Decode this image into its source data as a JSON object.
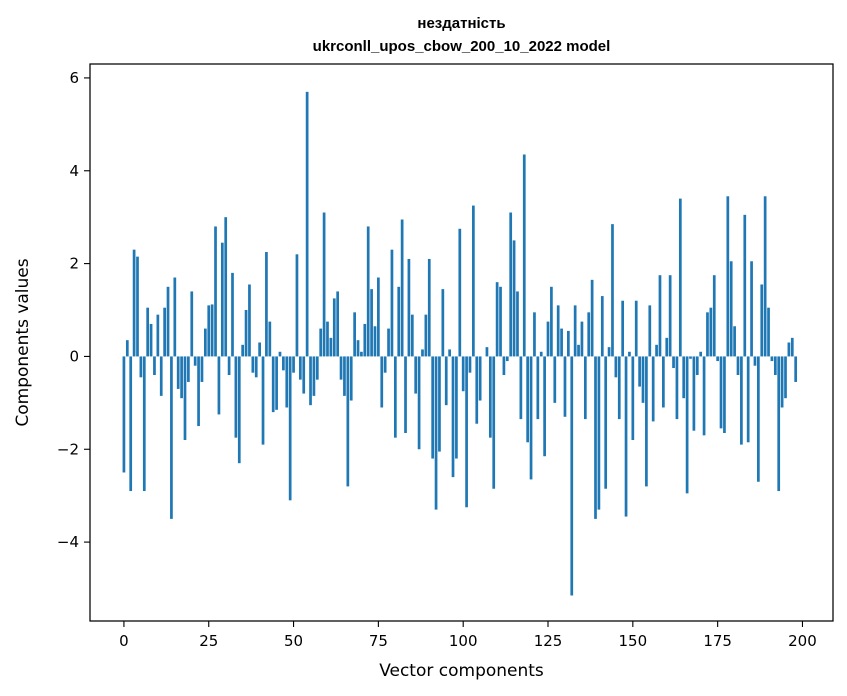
{
  "chart_data": {
    "type": "bar",
    "title_line1": "нездатність",
    "title_line2": "ukrconll_upos_cbow_200_10_2022 model",
    "xlabel": "Vector components",
    "ylabel": "Components values",
    "xlim": [
      -10,
      209
    ],
    "ylim": [
      -5.7,
      6.3
    ],
    "x_ticks": [
      0,
      25,
      50,
      75,
      100,
      125,
      150,
      175,
      200
    ],
    "y_ticks": [
      -4,
      -2,
      0,
      2,
      4,
      6
    ],
    "x_tick_labels": [
      "0",
      "25",
      "50",
      "75",
      "100",
      "125",
      "150",
      "175",
      "200"
    ],
    "y_tick_labels": [
      "−4",
      "−2",
      "0",
      "2",
      "4",
      "6"
    ],
    "grid": false,
    "legend": "none",
    "bar_color": "#1f77b4",
    "values": [
      -2.5,
      0.35,
      -2.9,
      2.3,
      2.15,
      -0.45,
      -2.9,
      1.05,
      0.7,
      -0.4,
      0.9,
      -0.85,
      1.05,
      1.5,
      -3.5,
      1.7,
      -0.7,
      -0.9,
      -1.8,
      -0.55,
      1.4,
      -0.2,
      -1.5,
      -0.55,
      0.6,
      1.1,
      1.12,
      2.8,
      -1.25,
      2.45,
      3.0,
      -0.4,
      1.8,
      -1.75,
      -2.3,
      0.25,
      1.0,
      1.55,
      -0.35,
      -0.45,
      0.3,
      -1.9,
      2.25,
      0.75,
      -1.2,
      -1.15,
      0.1,
      -0.3,
      -1.1,
      -3.1,
      -0.35,
      2.2,
      -0.5,
      -0.8,
      5.7,
      -1.05,
      -0.85,
      -0.5,
      0.6,
      3.1,
      0.75,
      0.4,
      1.25,
      1.4,
      -0.5,
      -0.85,
      -2.8,
      -0.95,
      0.95,
      0.35,
      0.1,
      0.7,
      2.8,
      1.45,
      0.65,
      1.7,
      -1.1,
      -0.35,
      0.6,
      2.3,
      -1.75,
      1.5,
      2.95,
      -1.65,
      2.1,
      0.9,
      -0.8,
      -2.0,
      0.15,
      0.9,
      2.1,
      -2.2,
      -3.3,
      -2.05,
      1.45,
      -1.05,
      0.15,
      -2.6,
      -2.2,
      2.75,
      -0.75,
      -3.25,
      -0.35,
      3.25,
      -1.45,
      -0.95,
      0.0,
      0.2,
      -1.75,
      -2.85,
      1.6,
      1.5,
      -0.4,
      -0.1,
      3.1,
      2.5,
      1.4,
      -1.35,
      4.35,
      -1.85,
      -2.65,
      0.95,
      -1.35,
      0.1,
      -2.15,
      0.75,
      1.5,
      -1.0,
      1.1,
      0.6,
      -1.3,
      0.55,
      -5.15,
      1.1,
      0.25,
      0.75,
      -1.35,
      0.95,
      1.65,
      -3.5,
      -3.3,
      1.3,
      -2.85,
      0.2,
      2.85,
      -0.45,
      -1.35,
      1.2,
      -3.45,
      0.1,
      -1.8,
      1.2,
      -0.65,
      -1.0,
      -2.8,
      1.1,
      -1.4,
      0.25,
      1.75,
      -1.1,
      0.4,
      1.75,
      -0.25,
      -1.35,
      3.4,
      -0.9,
      -2.95,
      -0.05,
      -1.6,
      -0.4,
      0.1,
      -1.7,
      0.95,
      1.05,
      1.75,
      -0.1,
      -1.55,
      -1.65,
      3.45,
      2.05,
      0.65,
      -0.4,
      -1.9,
      3.05,
      -1.85,
      2.05,
      -0.2,
      -2.7,
      1.55,
      3.45,
      1.05,
      -0.1,
      -0.4,
      -2.9,
      -1.1,
      -0.9,
      0.3,
      0.4,
      -0.55
    ]
  }
}
